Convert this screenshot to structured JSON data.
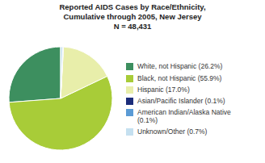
{
  "chart_data": {
    "type": "pie",
    "title": "Reported AIDS Cases by Race/Ethnicity,\nCumulative through 2005, New Jersey\nN = 48,431",
    "categories": [
      "White, not Hispanic (26.2%)",
      "Black, not Hispanic (55.9%)",
      "Hispanic (17.0%)",
      "Asian/Pacific Islander (0.1%)",
      "American Indian/Alaska Native\n(0.1%)",
      "Unknown/Other (0.7%)"
    ],
    "values": [
      26.2,
      55.9,
      17.0,
      0.1,
      0.1,
      0.7
    ],
    "colors": [
      "#3d8f5f",
      "#a8cc38",
      "#e8eeaa",
      "#1c2d7a",
      "#5b9bd5",
      "#c5e0f0"
    ],
    "legend": "right"
  }
}
